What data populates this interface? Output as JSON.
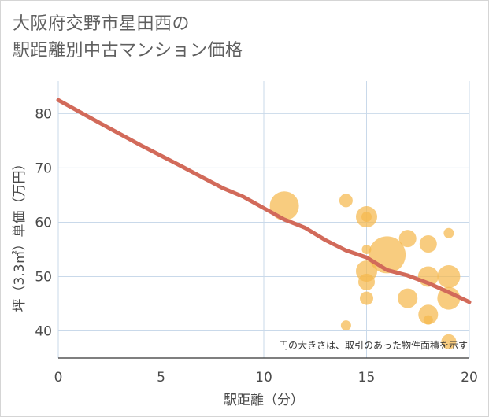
{
  "chart_data": {
    "type": "scatter",
    "title_lines": [
      "大阪府交野市星田西の",
      "駅距離別中古マンション価格"
    ],
    "xlabel": "駅距離（分）",
    "ylabel": "坪（3.3㎡）単価（万円）",
    "xlim": [
      0,
      20
    ],
    "ylim": [
      35,
      86
    ],
    "x_ticks": [
      0,
      5,
      10,
      15,
      20
    ],
    "y_ticks": [
      40,
      50,
      60,
      70,
      80
    ],
    "annotation": "円の大きさは、取引のあった物件面積を示す",
    "bubble_color": "#f5b84e",
    "line_color": "#d26a5a",
    "grid": true,
    "points": [
      {
        "x": 11,
        "y": 63,
        "size": 3.0
      },
      {
        "x": 14,
        "y": 64,
        "size": 1.0
      },
      {
        "x": 14,
        "y": 41,
        "size": 0.6
      },
      {
        "x": 15,
        "y": 61,
        "size": 2.0
      },
      {
        "x": 15,
        "y": 61,
        "size": 0.6
      },
      {
        "x": 15,
        "y": 55,
        "size": 0.5
      },
      {
        "x": 15,
        "y": 51,
        "size": 2.0
      },
      {
        "x": 15,
        "y": 49,
        "size": 1.4
      },
      {
        "x": 15,
        "y": 46,
        "size": 1.0
      },
      {
        "x": 16,
        "y": 54,
        "size": 4.0
      },
      {
        "x": 17,
        "y": 57,
        "size": 1.5
      },
      {
        "x": 17,
        "y": 46,
        "size": 1.8
      },
      {
        "x": 18,
        "y": 56,
        "size": 1.5
      },
      {
        "x": 18,
        "y": 50,
        "size": 1.9
      },
      {
        "x": 18,
        "y": 43,
        "size": 1.8
      },
      {
        "x": 18,
        "y": 42,
        "size": 0.5
      },
      {
        "x": 19,
        "y": 58,
        "size": 0.6
      },
      {
        "x": 19,
        "y": 50,
        "size": 2.2
      },
      {
        "x": 19,
        "y": 46,
        "size": 2.2
      },
      {
        "x": 19,
        "y": 38,
        "size": 1.2
      }
    ],
    "trend": {
      "name": "trend",
      "x": [
        0,
        2,
        4,
        6,
        8,
        9,
        10,
        11,
        12,
        13,
        14,
        15,
        16,
        17,
        18,
        19,
        20
      ],
      "y": [
        82.5,
        78.3,
        74.2,
        70.3,
        66.3,
        64.7,
        62.6,
        60.5,
        59.0,
        56.7,
        54.8,
        53.5,
        51.2,
        50.2,
        48.8,
        47.1,
        45.3
      ]
    }
  }
}
